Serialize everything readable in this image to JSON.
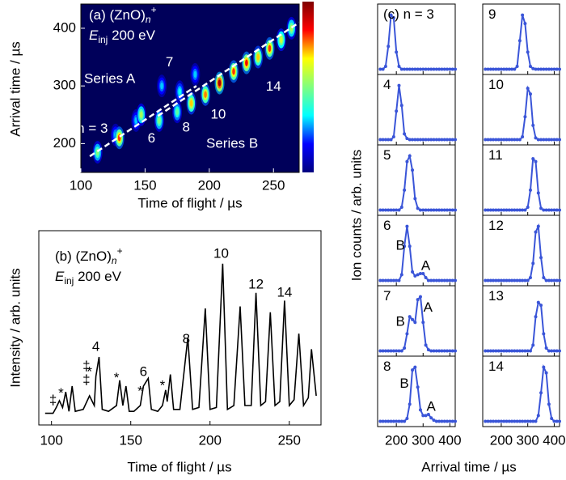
{
  "chart_data": [
    {
      "type": "heatmap",
      "title": "(a) (ZnO)",
      "title_subscript": "n",
      "title_superscript": "+",
      "energy_symbol": "E",
      "energy_subscript": "inj",
      "energy_value": " 200 eV",
      "xlabel": "Time of flight / µs",
      "ylabel": "Arrival time / µs",
      "xlim": [
        100,
        270
      ],
      "ylim": [
        150,
        442
      ],
      "xticks": [
        100,
        150,
        200,
        250
      ],
      "yticks": [
        200,
        300,
        400
      ],
      "background": "#00005a",
      "colormap": [
        "#00007f",
        "#0000ff",
        "#00ffff",
        "#7fff7f",
        "#ffff00",
        "#ff0000",
        "#7f0000"
      ],
      "x": [
        113,
        127,
        130,
        143,
        147,
        161,
        163,
        175,
        177,
        186,
        189,
        197,
        208,
        219,
        229,
        238,
        247,
        256,
        264
      ],
      "y": [
        185,
        215,
        210,
        240,
        250,
        240,
        300,
        255,
        290,
        270,
        320,
        285,
        305,
        325,
        340,
        350,
        365,
        380,
        400
      ],
      "values": [
        0.5,
        0.3,
        0.8,
        0.3,
        0.55,
        0.5,
        0.3,
        0.45,
        0.35,
        0.7,
        0.3,
        0.75,
        0.95,
        0.8,
        0.85,
        0.7,
        0.8,
        0.6,
        0.55
      ],
      "series_lines": [
        {
          "name": "Series A",
          "color": "#ffffff",
          "x": [
            107,
            190
          ],
          "y": [
            178,
            300
          ]
        },
        {
          "name": "Series B",
          "color": "#ffffff",
          "x": [
            160,
            270
          ],
          "y": [
            248,
            410
          ]
        }
      ],
      "annotations": [
        {
          "text": "n = 3",
          "x": 109,
          "y": 225
        },
        {
          "text": "7",
          "x": 169,
          "y": 340
        },
        {
          "text": "6",
          "x": 155,
          "y": 208
        },
        {
          "text": "8",
          "x": 182,
          "y": 227
        },
        {
          "text": "10",
          "x": 207,
          "y": 250
        },
        {
          "text": "14",
          "x": 250,
          "y": 298
        }
      ]
    },
    {
      "type": "line",
      "title": "(b) (ZnO)",
      "title_subscript": "n",
      "title_superscript": "+",
      "energy_symbol": "E",
      "energy_subscript": "inj",
      "energy_value": " 200 eV",
      "xlabel": "Time of flight / µs",
      "ylabel": "Intensity / arb. units",
      "xlim": [
        92,
        270
      ],
      "ylim": [
        0,
        1
      ],
      "xticks": [
        100,
        150,
        200,
        250
      ],
      "color": "#000000",
      "x": [
        96,
        101,
        103,
        105,
        107,
        109,
        111,
        113,
        115,
        120,
        124,
        127,
        128,
        130,
        132,
        136,
        141,
        143,
        145,
        147,
        149,
        152,
        156,
        158,
        161,
        163,
        167,
        170,
        172,
        173,
        175,
        177,
        181,
        186,
        189,
        193,
        197,
        200,
        204,
        208,
        211,
        215,
        219,
        222,
        226,
        229,
        232,
        235,
        238,
        241,
        244,
        247,
        250,
        253,
        256,
        259,
        262,
        264,
        267
      ],
      "values": [
        0.06,
        0.06,
        0.09,
        0.125,
        0.09,
        0.17,
        0.07,
        0.2,
        0.07,
        0.08,
        0.15,
        0.1,
        0.25,
        0.35,
        0.08,
        0.07,
        0.1,
        0.23,
        0.1,
        0.2,
        0.07,
        0.07,
        0.1,
        0.2,
        0.24,
        0.08,
        0.07,
        0.1,
        0.18,
        0.12,
        0.26,
        0.08,
        0.08,
        0.45,
        0.08,
        0.09,
        0.6,
        0.08,
        0.09,
        0.83,
        0.08,
        0.1,
        0.61,
        0.1,
        0.1,
        0.68,
        0.1,
        0.12,
        0.58,
        0.1,
        0.12,
        0.64,
        0.1,
        0.13,
        0.47,
        0.1,
        0.14,
        0.39,
        0.15
      ],
      "annotations": [
        {
          "text": "‡",
          "x": 101,
          "y": 0.125
        },
        {
          "text": "*",
          "x": 106,
          "y": 0.16
        },
        {
          "text": "‡",
          "x": 122,
          "y": 0.3
        },
        {
          "text": "‡",
          "x": 122,
          "y": 0.23
        },
        {
          "text": "*",
          "x": 124,
          "y": 0.27
        },
        {
          "text": "4",
          "x": 128,
          "y": 0.4
        },
        {
          "text": "*",
          "x": 141,
          "y": 0.24
        },
        {
          "text": "*",
          "x": 156,
          "y": 0.17
        },
        {
          "text": "6",
          "x": 158,
          "y": 0.27
        },
        {
          "text": "*",
          "x": 170,
          "y": 0.2
        },
        {
          "text": "8",
          "x": 185,
          "y": 0.44
        },
        {
          "text": "10",
          "x": 207,
          "y": 0.88
        },
        {
          "text": "12",
          "x": 229,
          "y": 0.72
        },
        {
          "text": "14",
          "x": 247,
          "y": 0.68
        }
      ]
    },
    {
      "type": "profiles",
      "panel_label": "(c)",
      "xlabel": "Arrival time / µs",
      "ylabel": "Ion counts / arb. units",
      "xlim": [
        130,
        420
      ],
      "ylim": [
        -0.05,
        1.1
      ],
      "xticks": [
        200,
        300,
        400
      ],
      "color": "#3a55d8",
      "x": [
        140,
        150,
        160,
        170,
        180,
        190,
        200,
        210,
        220,
        230,
        240,
        250,
        260,
        270,
        280,
        290,
        300,
        310,
        320,
        330,
        340,
        350,
        360,
        370,
        380,
        390,
        400,
        410,
        420
      ],
      "panels": [
        {
          "label": "n = 3",
          "values": [
            0,
            0,
            0.05,
            0.4,
            0.95,
            0.9,
            0.3,
            0.05,
            0,
            0,
            0,
            0,
            0,
            0,
            0,
            0,
            0,
            0,
            0,
            0,
            0,
            0,
            0,
            0,
            0,
            0,
            0,
            0,
            0
          ]
        },
        {
          "label": "4",
          "values": [
            0,
            0,
            0,
            0,
            0,
            0.05,
            0.5,
            0.95,
            0.6,
            0.1,
            0.02,
            0,
            0,
            0,
            0,
            0,
            0,
            0,
            0,
            0,
            0,
            0,
            0,
            0,
            0,
            0,
            0,
            0,
            0
          ]
        },
        {
          "label": "5",
          "values": [
            0,
            0,
            0,
            0,
            0,
            0,
            0,
            0,
            0.05,
            0.35,
            0.85,
            0.95,
            0.7,
            0.2,
            0.03,
            0,
            0,
            0,
            0,
            0,
            0,
            0,
            0,
            0,
            0,
            0,
            0,
            0,
            0
          ]
        },
        {
          "label": "6",
          "values": [
            0,
            0,
            0,
            0,
            0,
            0,
            0,
            0,
            0.1,
            0.6,
            0.95,
            0.6,
            0.15,
            0.08,
            0.1,
            0.12,
            0.12,
            0.05,
            0,
            0,
            0,
            0,
            0,
            0,
            0,
            0,
            0,
            0,
            0
          ],
          "annotations": [
            {
              "text": "B",
              "x": 215,
              "y": 0.6
            },
            {
              "text": "A",
              "x": 310,
              "y": 0.25
            }
          ]
        },
        {
          "label": "7",
          "values": [
            0,
            0,
            0,
            0,
            0,
            0,
            0,
            0,
            0,
            0.05,
            0.3,
            0.6,
            0.55,
            0.5,
            0.9,
            0.95,
            0.5,
            0.1,
            0.02,
            0,
            0,
            0,
            0,
            0,
            0,
            0,
            0,
            0,
            0
          ],
          "annotations": [
            {
              "text": "B",
              "x": 215,
              "y": 0.5
            },
            {
              "text": "A",
              "x": 318,
              "y": 0.75
            }
          ]
        },
        {
          "label": "8",
          "values": [
            0,
            0,
            0,
            0,
            0,
            0,
            0,
            0,
            0,
            0,
            0.05,
            0.3,
            0.9,
            0.95,
            0.6,
            0.2,
            0.1,
            0.1,
            0.12,
            0.06,
            0.02,
            0,
            0,
            0,
            0,
            0,
            0,
            0,
            0
          ],
          "annotations": [
            {
              "text": "B",
              "x": 230,
              "y": 0.65
            },
            {
              "text": "A",
              "x": 330,
              "y": 0.25
            }
          ]
        },
        {
          "label": "9",
          "values": [
            0,
            0,
            0,
            0,
            0,
            0,
            0,
            0,
            0,
            0,
            0,
            0,
            0.05,
            0.5,
            0.95,
            0.8,
            0.3,
            0.05,
            0.01,
            0,
            0,
            0,
            0,
            0,
            0,
            0,
            0,
            0,
            0
          ]
        },
        {
          "label": "10",
          "values": [
            0,
            0,
            0,
            0,
            0,
            0,
            0,
            0,
            0,
            0,
            0,
            0,
            0,
            0,
            0.05,
            0.4,
            0.9,
            0.8,
            0.25,
            0.03,
            0,
            0,
            0,
            0,
            0,
            0,
            0,
            0,
            0
          ]
        },
        {
          "label": "11",
          "values": [
            0,
            0,
            0,
            0,
            0,
            0,
            0,
            0,
            0,
            0,
            0,
            0,
            0,
            0,
            0,
            0,
            0.05,
            0.35,
            0.9,
            0.85,
            0.3,
            0.03,
            0,
            0,
            0,
            0,
            0,
            0,
            0
          ]
        },
        {
          "label": "12",
          "values": [
            0,
            0,
            0,
            0,
            0,
            0,
            0,
            0,
            0,
            0,
            0,
            0,
            0,
            0,
            0,
            0,
            0,
            0.05,
            0.3,
            0.85,
            0.95,
            0.4,
            0.05,
            0,
            0,
            0,
            0,
            0,
            0
          ]
        },
        {
          "label": "13",
          "values": [
            0,
            0,
            0,
            0,
            0,
            0,
            0,
            0,
            0,
            0,
            0,
            0,
            0,
            0,
            0,
            0,
            0,
            0,
            0.1,
            0.6,
            0.85,
            0.8,
            0.3,
            0.05,
            0,
            0,
            0,
            0,
            0
          ]
        },
        {
          "label": "14",
          "values": [
            0,
            0,
            0,
            0,
            0,
            0,
            0,
            0,
            0,
            0,
            0,
            0,
            0,
            0,
            0,
            0,
            0,
            0,
            0,
            0,
            0.1,
            0.5,
            0.95,
            0.85,
            0.3,
            0.05,
            0,
            0,
            0
          ]
        }
      ]
    }
  ]
}
